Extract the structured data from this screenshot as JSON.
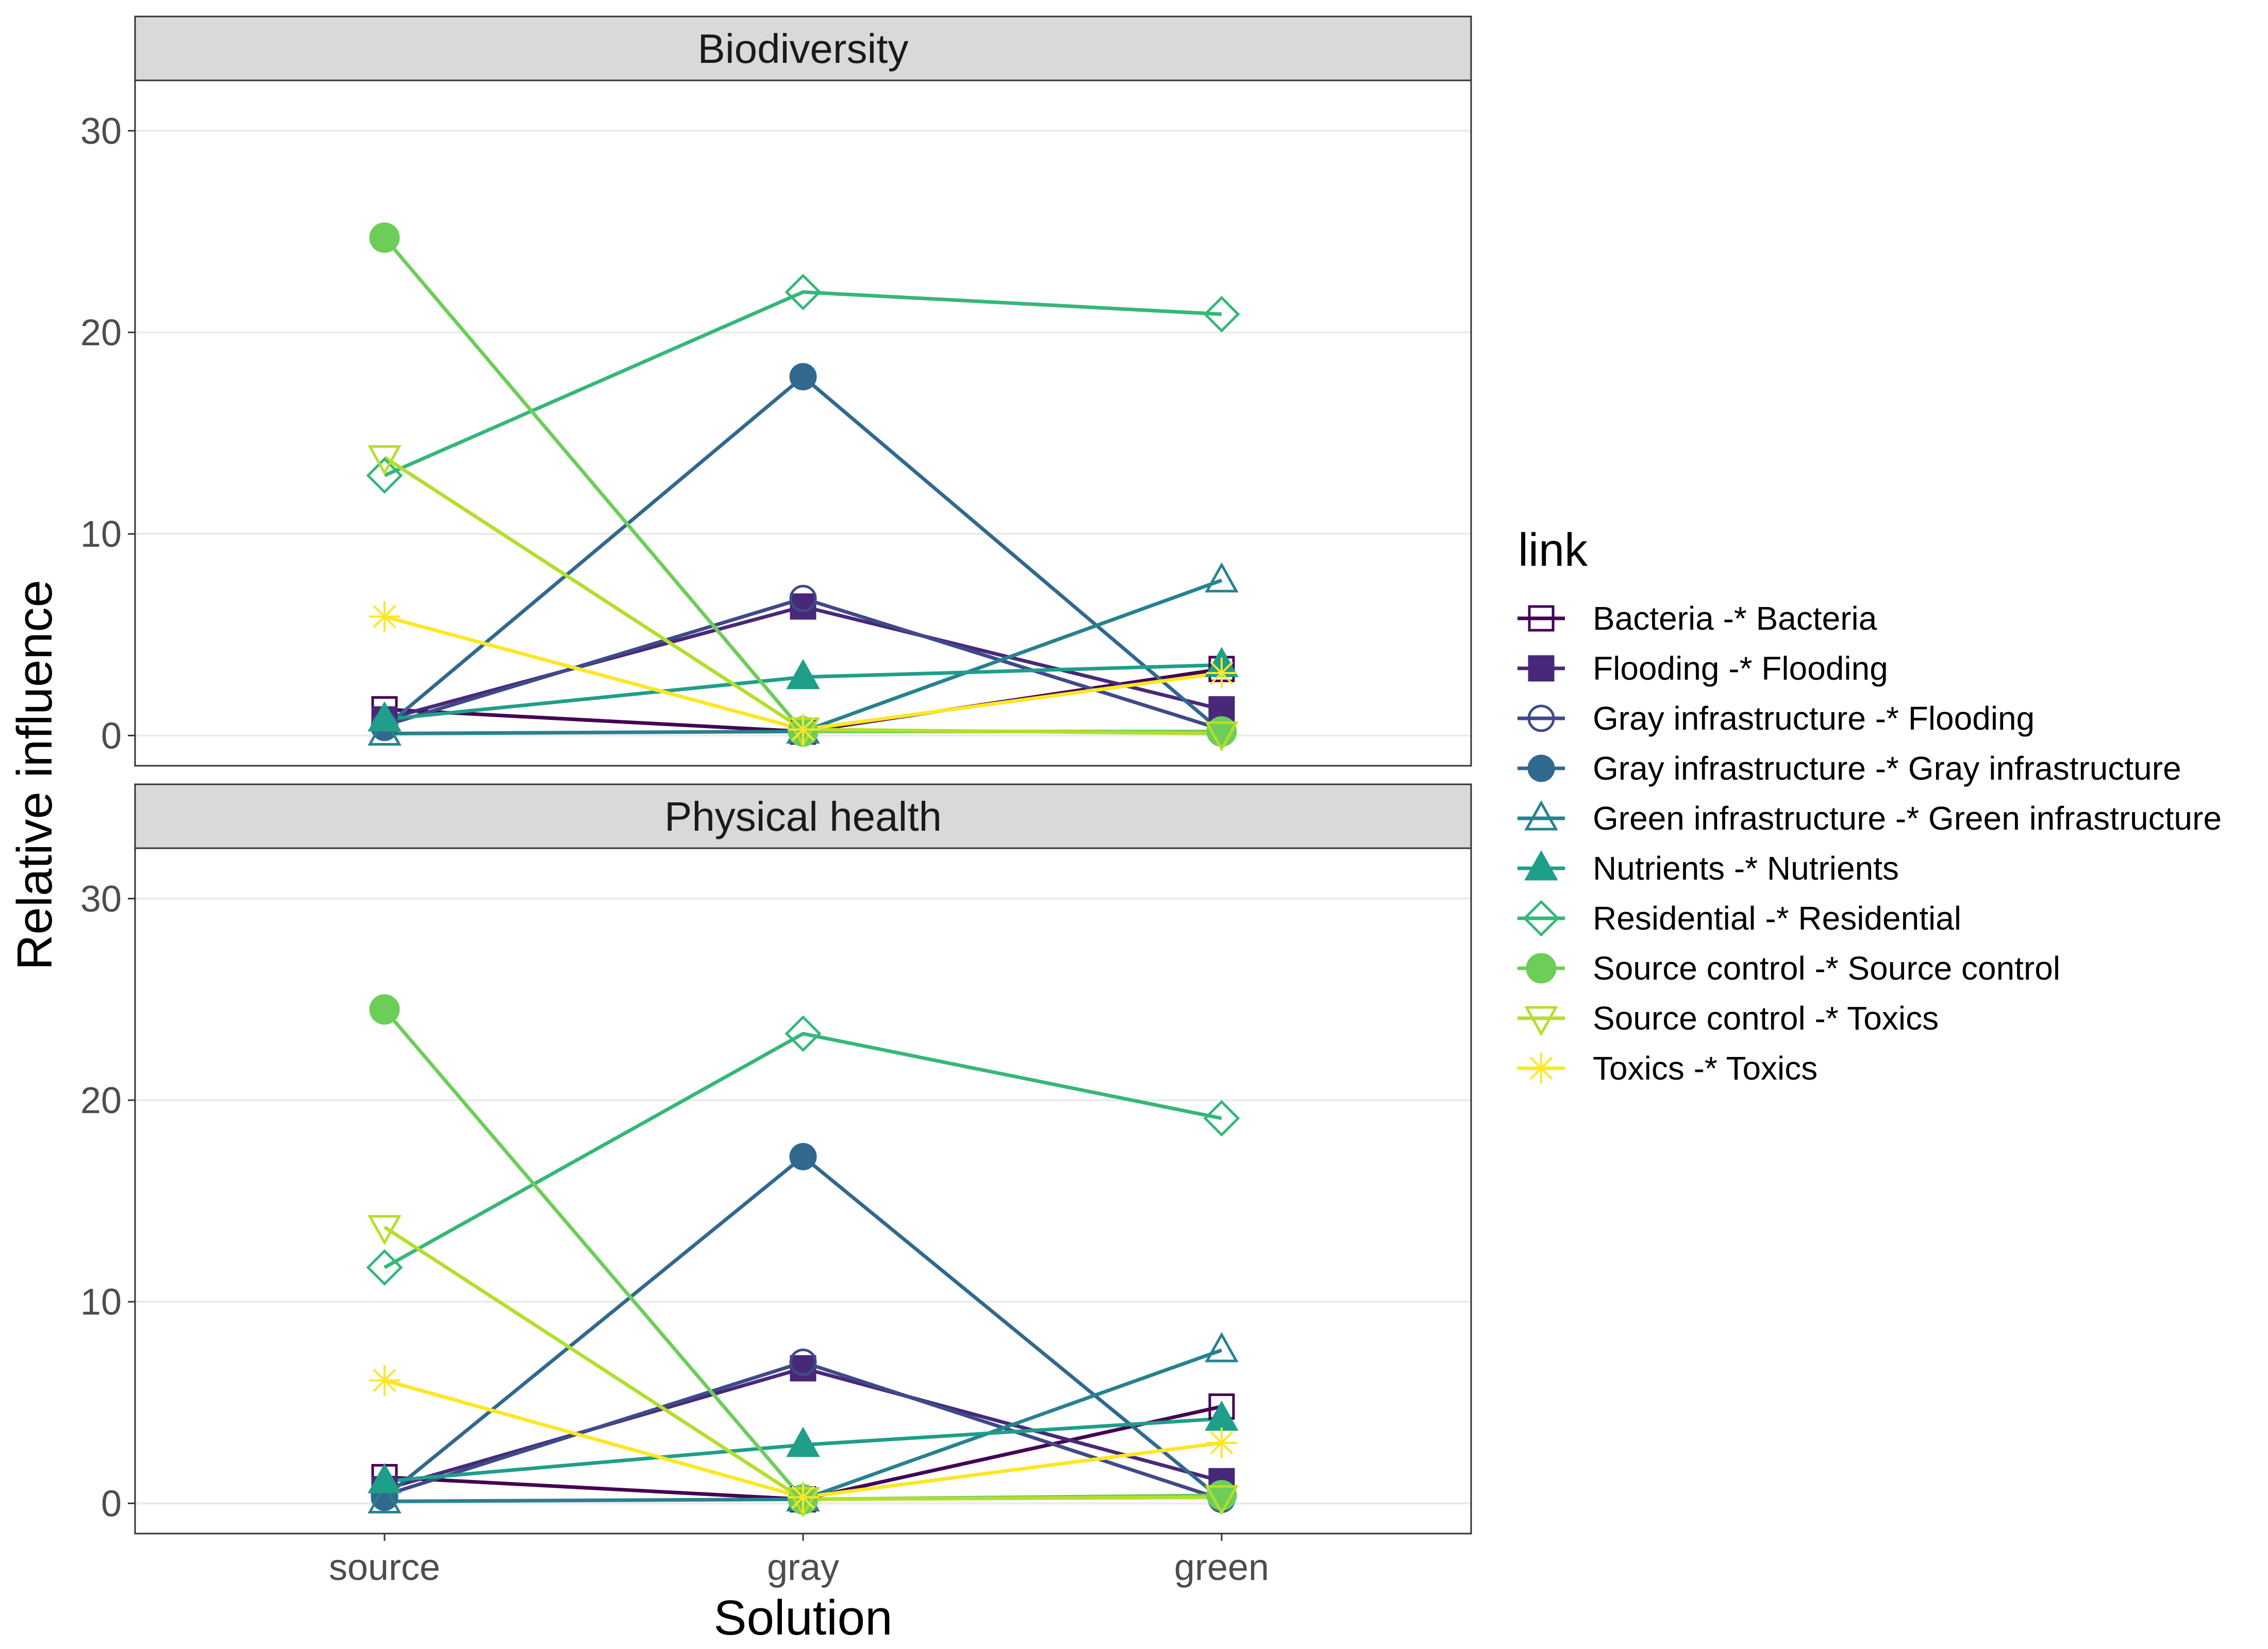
{
  "chart_data": {
    "type": "line",
    "xlabel": "Solution",
    "ylabel": "Relative influence",
    "categories": [
      "source",
      "gray",
      "green"
    ],
    "ylim": [
      -1.5,
      32.5
    ],
    "yticks": [
      0,
      10,
      20,
      30
    ],
    "grid": true,
    "legend": {
      "title": "link",
      "position": "right",
      "entries": [
        {
          "label": "Bacteria -* Bacteria",
          "color": "#440154",
          "shape": "square-open"
        },
        {
          "label": "Flooding -* Flooding",
          "color": "#482878",
          "shape": "square-filled"
        },
        {
          "label": "Gray infrastructure -* Flooding",
          "color": "#3E4A89",
          "shape": "circle-open"
        },
        {
          "label": "Gray infrastructure -* Gray infrastructure",
          "color": "#31688E",
          "shape": "circle-filled"
        },
        {
          "label": "Green infrastructure -* Green infrastructure",
          "color": "#26828E",
          "shape": "triangle-open"
        },
        {
          "label": "Nutrients -* Nutrients",
          "color": "#1F9E89",
          "shape": "triangle-filled"
        },
        {
          "label": "Residential -* Residential",
          "color": "#35B779",
          "shape": "diamond-open"
        },
        {
          "label": "Source control -* Source control",
          "color": "#6DCD59",
          "shape": "circle-filled-large"
        },
        {
          "label": "Source control -* Toxics",
          "color": "#B4DE2C",
          "shape": "triangle-down-open"
        },
        {
          "label": "Toxics -* Toxics",
          "color": "#FDE725",
          "shape": "asterisk"
        }
      ]
    },
    "panels": [
      {
        "title": "Biodiversity",
        "series": [
          {
            "name": "Bacteria -* Bacteria",
            "values": [
              1.3,
              0.2,
              3.3
            ]
          },
          {
            "name": "Flooding -* Flooding",
            "values": [
              0.8,
              6.4,
              1.3
            ]
          },
          {
            "name": "Gray infrastructure -* Flooding",
            "values": [
              0.5,
              6.8,
              0.3
            ]
          },
          {
            "name": "Gray infrastructure -* Gray infrastructure",
            "values": [
              0.4,
              17.8,
              0.2
            ]
          },
          {
            "name": "Green infrastructure -* Green infrastructure",
            "values": [
              0.1,
              0.2,
              7.7
            ]
          },
          {
            "name": "Nutrients -* Nutrients",
            "values": [
              0.8,
              2.9,
              3.5
            ]
          },
          {
            "name": "Residential -* Residential",
            "values": [
              12.9,
              22.0,
              20.9
            ]
          },
          {
            "name": "Source control -* Source control",
            "values": [
              24.7,
              0.2,
              0.2
            ]
          },
          {
            "name": "Source control -* Toxics",
            "values": [
              13.8,
              0.3,
              0.1
            ]
          },
          {
            "name": "Toxics -* Toxics",
            "values": [
              5.9,
              0.3,
              3.1
            ]
          }
        ]
      },
      {
        "title": "Physical health",
        "series": [
          {
            "name": "Bacteria -* Bacteria",
            "values": [
              1.3,
              0.2,
              4.8
            ]
          },
          {
            "name": "Flooding -* Flooding",
            "values": [
              0.7,
              6.7,
              1.1
            ]
          },
          {
            "name": "Gray infrastructure -* Flooding",
            "values": [
              0.4,
              7.0,
              0.2
            ]
          },
          {
            "name": "Gray infrastructure -* Gray infrastructure",
            "values": [
              0.3,
              17.2,
              0.2
            ]
          },
          {
            "name": "Green infrastructure -* Green infrastructure",
            "values": [
              0.1,
              0.2,
              7.6
            ]
          },
          {
            "name": "Nutrients -* Nutrients",
            "values": [
              1.1,
              2.9,
              4.2
            ]
          },
          {
            "name": "Residential -* Residential",
            "values": [
              11.7,
              23.3,
              19.1
            ]
          },
          {
            "name": "Source control -* Source control",
            "values": [
              24.5,
              0.2,
              0.4
            ]
          },
          {
            "name": "Source control -* Toxics",
            "values": [
              13.7,
              0.2,
              0.3
            ]
          },
          {
            "name": "Toxics -* Toxics",
            "values": [
              6.1,
              0.3,
              3.0
            ]
          }
        ]
      }
    ]
  }
}
